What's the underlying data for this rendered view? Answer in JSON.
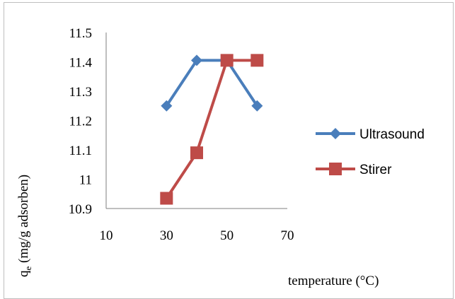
{
  "chart_data": {
    "type": "scatter",
    "title": "",
    "xlabel": "temperature  (°C)",
    "ylabel_main": "q",
    "ylabel_sub": "e",
    "ylabel_rest": " (mg/g adsorben)",
    "xlim": [
      10,
      70
    ],
    "ylim": [
      10.9,
      11.5
    ],
    "xticks": [
      "10",
      "30",
      "50",
      "70"
    ],
    "xtick_values": [
      10,
      30,
      50,
      70
    ],
    "yticks": [
      "11.5",
      "11.4",
      "11.3",
      "11.2",
      "11.1",
      "11",
      "10.9"
    ],
    "ytick_values": [
      11.5,
      11.4,
      11.3,
      11.2,
      11.1,
      11.0,
      10.9
    ],
    "grid": false,
    "legend_position": "right",
    "series": [
      {
        "name": "Ultrasound",
        "color": "#4a7ebb",
        "marker": "diamond",
        "x": [
          30,
          40,
          50,
          60
        ],
        "y": [
          11.25,
          11.405,
          11.405,
          11.25
        ]
      },
      {
        "name": "Stirer",
        "color": "#be4b48",
        "marker": "square",
        "x": [
          30,
          40,
          50,
          60
        ],
        "y": [
          10.935,
          11.09,
          11.405,
          11.405
        ]
      }
    ]
  }
}
